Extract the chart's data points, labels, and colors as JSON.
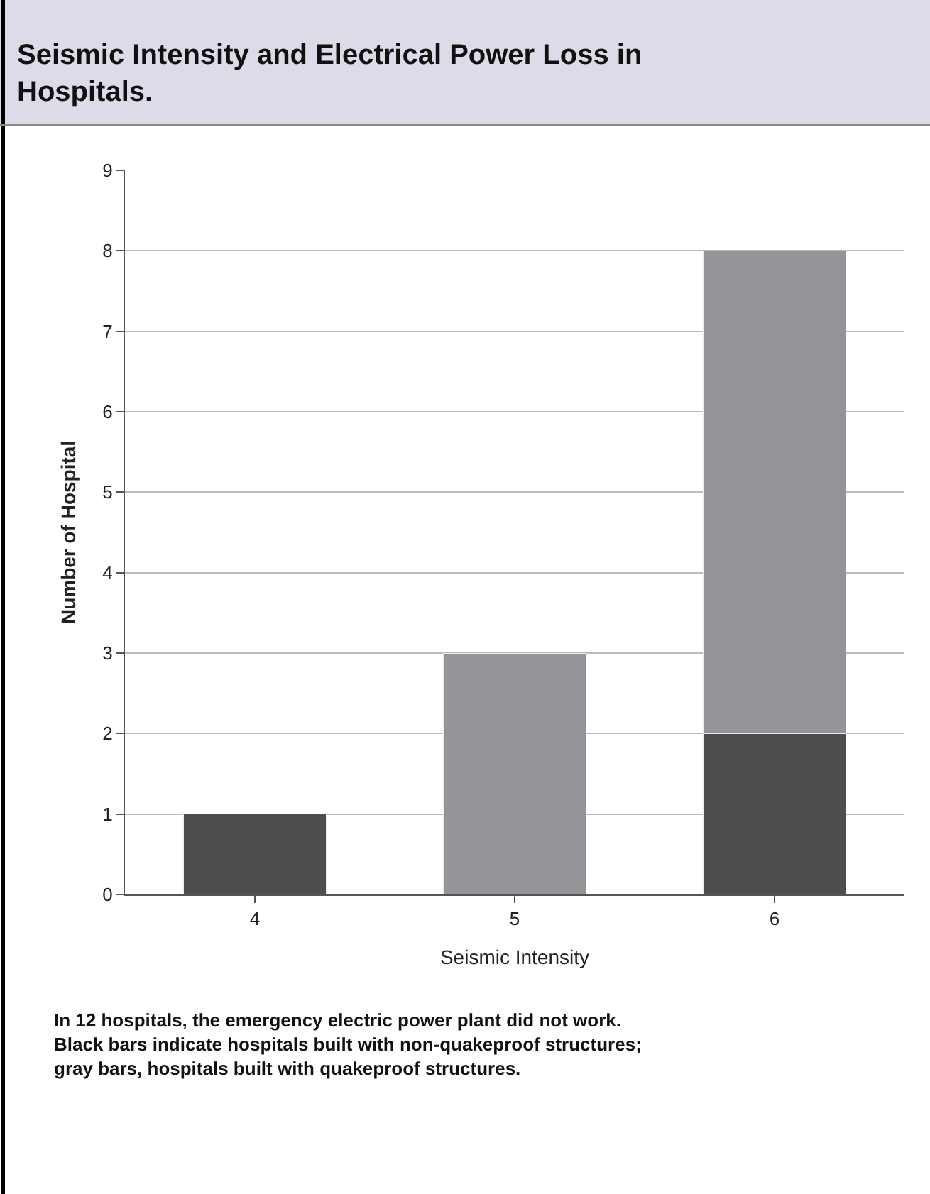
{
  "chart_data": {
    "type": "bar",
    "title": "Seismic Intensity and Electrical Power Loss in Hospitals.",
    "xlabel": "Seismic Intensity",
    "ylabel": "Number of Hospital",
    "categories": [
      "4",
      "5",
      "6"
    ],
    "stacked": true,
    "series": [
      {
        "color": "#4d4d4f",
        "values": [
          1,
          null,
          2
        ]
      },
      {
        "color": "#939598",
        "values": [
          null,
          3,
          6
        ]
      }
    ],
    "ylim": [
      0,
      9
    ],
    "yticks": [
      0,
      1,
      2,
      3,
      4,
      5,
      6,
      7,
      8,
      9
    ],
    "grid": "y",
    "annotations": [
      "In 12 hospitals, the emergency electric power plant did not work. Black bars indicate hospitals built with non-quakeproof structures; gray bars, hospitals built with quakeproof structures."
    ]
  }
}
